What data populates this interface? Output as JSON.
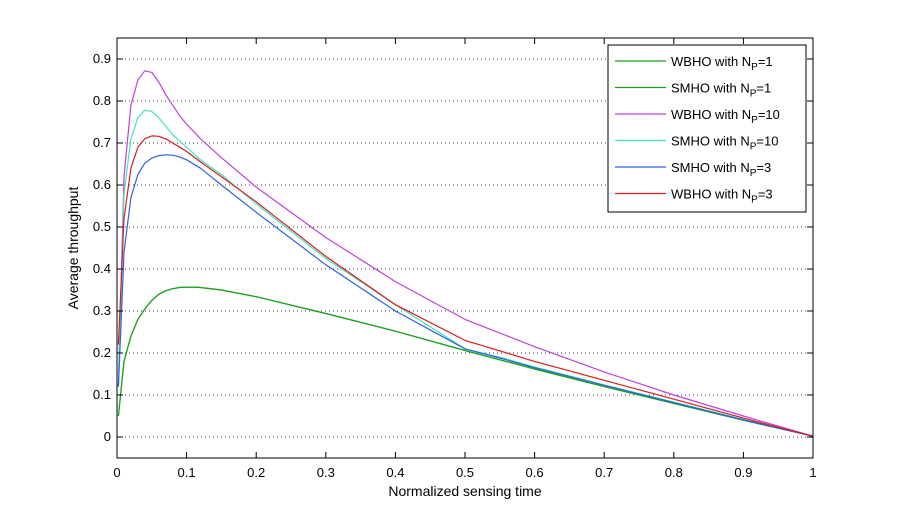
{
  "chart_data": {
    "type": "line",
    "title": "",
    "xlabel": "Normalized sensing time",
    "ylabel": "Average throughput",
    "xlim": [
      0,
      1
    ],
    "ylim": [
      -0.05,
      0.95
    ],
    "xticks": [
      0,
      0.1,
      0.2,
      0.3,
      0.4,
      0.5,
      0.6,
      0.7,
      0.8,
      0.9,
      1
    ],
    "xtick_labels": [
      "0",
      "0.1",
      "0.2",
      "0.3",
      "0.4",
      "0.5",
      "0.6",
      "0.7",
      "0.8",
      "0.9",
      "1"
    ],
    "yticks": [
      0,
      0.1,
      0.2,
      0.3,
      0.4,
      0.5,
      0.6,
      0.7,
      0.8,
      0.9
    ],
    "ytick_labels": [
      "0",
      "0.1",
      "0.2",
      "0.3",
      "0.4",
      "0.5",
      "0.6",
      "0.7",
      "0.8",
      "0.9"
    ],
    "grid": "horizontal-dotted",
    "legend_position": "top-right",
    "series": [
      {
        "name": "WBHO with N_P=1",
        "legend": {
          "prefix": "WBHO with N",
          "sub": "P",
          "suffix": "=1"
        },
        "color": "#1aa31a",
        "x": [
          0.002,
          0.01,
          0.02,
          0.03,
          0.04,
          0.05,
          0.06,
          0.07,
          0.08,
          0.09,
          0.1,
          0.11,
          0.12,
          0.15,
          0.2,
          0.3,
          0.4,
          0.5,
          0.6,
          0.7,
          0.8,
          0.9,
          1.0
        ],
        "y": [
          0.05,
          0.18,
          0.24,
          0.28,
          0.305,
          0.325,
          0.34,
          0.348,
          0.353,
          0.356,
          0.357,
          0.357,
          0.356,
          0.35,
          0.334,
          0.294,
          0.252,
          0.206,
          0.162,
          0.12,
          0.08,
          0.04,
          0.002
        ]
      },
      {
        "name": "SMHO with N_P=1",
        "legend": {
          "prefix": "SMHO with N",
          "sub": "P",
          "suffix": "=1"
        },
        "color": "#1aa31a",
        "x": [
          0.002,
          0.01,
          0.02,
          0.03,
          0.04,
          0.05,
          0.06,
          0.07,
          0.08,
          0.09,
          0.1,
          0.11,
          0.12,
          0.15,
          0.2,
          0.3,
          0.4,
          0.5,
          0.6,
          0.7,
          0.8,
          0.9,
          1.0
        ],
        "y": [
          0.05,
          0.18,
          0.24,
          0.28,
          0.305,
          0.325,
          0.34,
          0.348,
          0.353,
          0.356,
          0.357,
          0.357,
          0.356,
          0.35,
          0.334,
          0.294,
          0.252,
          0.206,
          0.162,
          0.12,
          0.08,
          0.04,
          0.002
        ]
      },
      {
        "name": "WBHO with N_P=10",
        "legend": {
          "prefix": "WBHO with N",
          "sub": "P",
          "suffix": "=10"
        },
        "color": "#c040e0",
        "x": [
          0.002,
          0.01,
          0.02,
          0.03,
          0.04,
          0.05,
          0.06,
          0.07,
          0.08,
          0.09,
          0.1,
          0.12,
          0.15,
          0.2,
          0.3,
          0.4,
          0.5,
          0.6,
          0.7,
          0.8,
          0.9,
          1.0
        ],
        "y": [
          0.12,
          0.62,
          0.79,
          0.85,
          0.872,
          0.868,
          0.845,
          0.815,
          0.79,
          0.765,
          0.745,
          0.71,
          0.665,
          0.595,
          0.475,
          0.37,
          0.28,
          0.215,
          0.155,
          0.1,
          0.05,
          0.002
        ]
      },
      {
        "name": "SMHO with N_P=10",
        "legend": {
          "prefix": "SMHO with N",
          "sub": "P",
          "suffix": "=10"
        },
        "color": "#40e8c0",
        "x": [
          0.002,
          0.01,
          0.02,
          0.03,
          0.04,
          0.05,
          0.06,
          0.07,
          0.08,
          0.09,
          0.1,
          0.12,
          0.15,
          0.2,
          0.3,
          0.4,
          0.5,
          0.55,
          0.6,
          0.7,
          0.8,
          0.9,
          1.0
        ],
        "y": [
          0.12,
          0.58,
          0.71,
          0.76,
          0.778,
          0.775,
          0.76,
          0.74,
          0.72,
          0.705,
          0.69,
          0.66,
          0.625,
          0.555,
          0.425,
          0.315,
          0.21,
          0.19,
          0.167,
          0.124,
          0.083,
          0.042,
          0.002
        ]
      },
      {
        "name": "SMHO with N_P=3",
        "legend": {
          "prefix": "SMHO with N",
          "sub": "P",
          "suffix": "=3"
        },
        "color": "#3060e0",
        "x": [
          0.002,
          0.01,
          0.02,
          0.03,
          0.04,
          0.05,
          0.06,
          0.07,
          0.08,
          0.09,
          0.1,
          0.12,
          0.15,
          0.2,
          0.3,
          0.4,
          0.5,
          0.55,
          0.6,
          0.7,
          0.8,
          0.9,
          1.0
        ],
        "y": [
          0.12,
          0.44,
          0.57,
          0.625,
          0.652,
          0.664,
          0.67,
          0.672,
          0.671,
          0.667,
          0.66,
          0.64,
          0.6,
          0.535,
          0.41,
          0.3,
          0.21,
          0.188,
          0.165,
          0.123,
          0.082,
          0.041,
          0.002
        ]
      },
      {
        "name": "WBHO with N_P=3",
        "legend": {
          "prefix": "WBHO with N",
          "sub": "P",
          "suffix": "=3"
        },
        "color": "#e01a1a",
        "x": [
          0.002,
          0.01,
          0.02,
          0.03,
          0.04,
          0.05,
          0.06,
          0.07,
          0.08,
          0.09,
          0.1,
          0.12,
          0.15,
          0.2,
          0.3,
          0.4,
          0.5,
          0.6,
          0.7,
          0.8,
          0.9,
          1.0
        ],
        "y": [
          0.22,
          0.52,
          0.64,
          0.69,
          0.71,
          0.717,
          0.716,
          0.71,
          0.7,
          0.69,
          0.68,
          0.655,
          0.62,
          0.56,
          0.43,
          0.315,
          0.23,
          0.18,
          0.135,
          0.09,
          0.045,
          0.002
        ]
      }
    ]
  }
}
